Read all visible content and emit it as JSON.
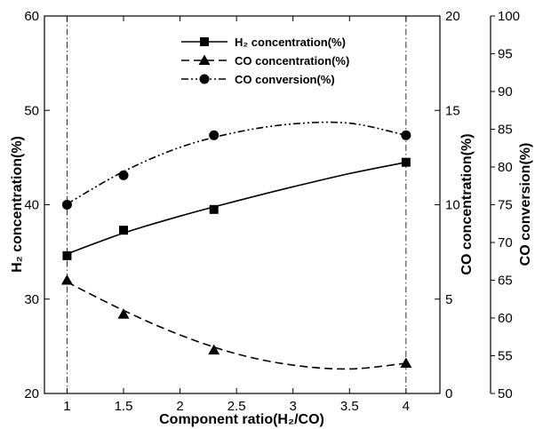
{
  "chart_data": {
    "type": "line",
    "xlabel": "Component ratio(H₂/CO)",
    "x_ticks": [
      "1",
      "1.5",
      "2",
      "2.5",
      "3",
      "3.5",
      "4"
    ],
    "xlim": [
      0.8,
      4.3
    ],
    "axes": {
      "left": {
        "label": "H₂ concentration(%)",
        "ylim": [
          20,
          60
        ],
        "ticks": [
          "20",
          "30",
          "40",
          "50",
          "60"
        ]
      },
      "right1": {
        "label": "CO concentration(%)",
        "ylim": [
          0,
          20
        ],
        "ticks": [
          "0",
          "5",
          "10",
          "15",
          "20"
        ]
      },
      "right2": {
        "label": "CO conversion(%)",
        "ylim": [
          50,
          100
        ],
        "ticks": [
          "50",
          "55",
          "60",
          "65",
          "70",
          "75",
          "80",
          "85",
          "90",
          "95",
          "100"
        ]
      }
    },
    "reference_lines_x": [
      1,
      4
    ],
    "series": [
      {
        "name": "H₂ concentration(%)",
        "axis": "left",
        "marker": "square",
        "line_style": "solid",
        "x": [
          1,
          1.5,
          2.3,
          4
        ],
        "y": [
          34.6,
          37.3,
          39.5,
          44.5
        ],
        "curve_x": [
          1,
          1.5,
          2,
          2.5,
          3,
          3.5,
          4
        ],
        "curve_y": [
          34.8,
          37.0,
          38.8,
          40.4,
          41.9,
          43.3,
          44.5
        ]
      },
      {
        "name": "CO concentration(%)",
        "axis": "right1",
        "marker": "triangle",
        "line_style": "dashed",
        "x": [
          1,
          1.5,
          2.3,
          4
        ],
        "y": [
          6.0,
          4.2,
          2.3,
          1.6
        ],
        "curve_x": [
          1,
          1.5,
          2,
          2.5,
          3,
          3.5,
          4
        ],
        "curve_y": [
          5.9,
          4.4,
          3.1,
          2.1,
          1.5,
          1.3,
          1.6
        ]
      },
      {
        "name": "CO conversion(%)",
        "axis": "right2",
        "marker": "circle",
        "line_style": "dash-dot-dot",
        "x": [
          1,
          1.5,
          2.3,
          4
        ],
        "y": [
          75.0,
          78.9,
          84.2,
          84.2
        ],
        "curve_x": [
          1,
          1.5,
          2,
          2.5,
          3,
          3.5,
          4
        ],
        "curve_y": [
          75.1,
          79.4,
          82.6,
          84.6,
          85.7,
          85.8,
          84.2
        ]
      }
    ],
    "legend": {
      "position": "top-right",
      "items": [
        "H₂ concentration(%)",
        "CO concentration(%)",
        "CO conversion(%)"
      ]
    }
  }
}
